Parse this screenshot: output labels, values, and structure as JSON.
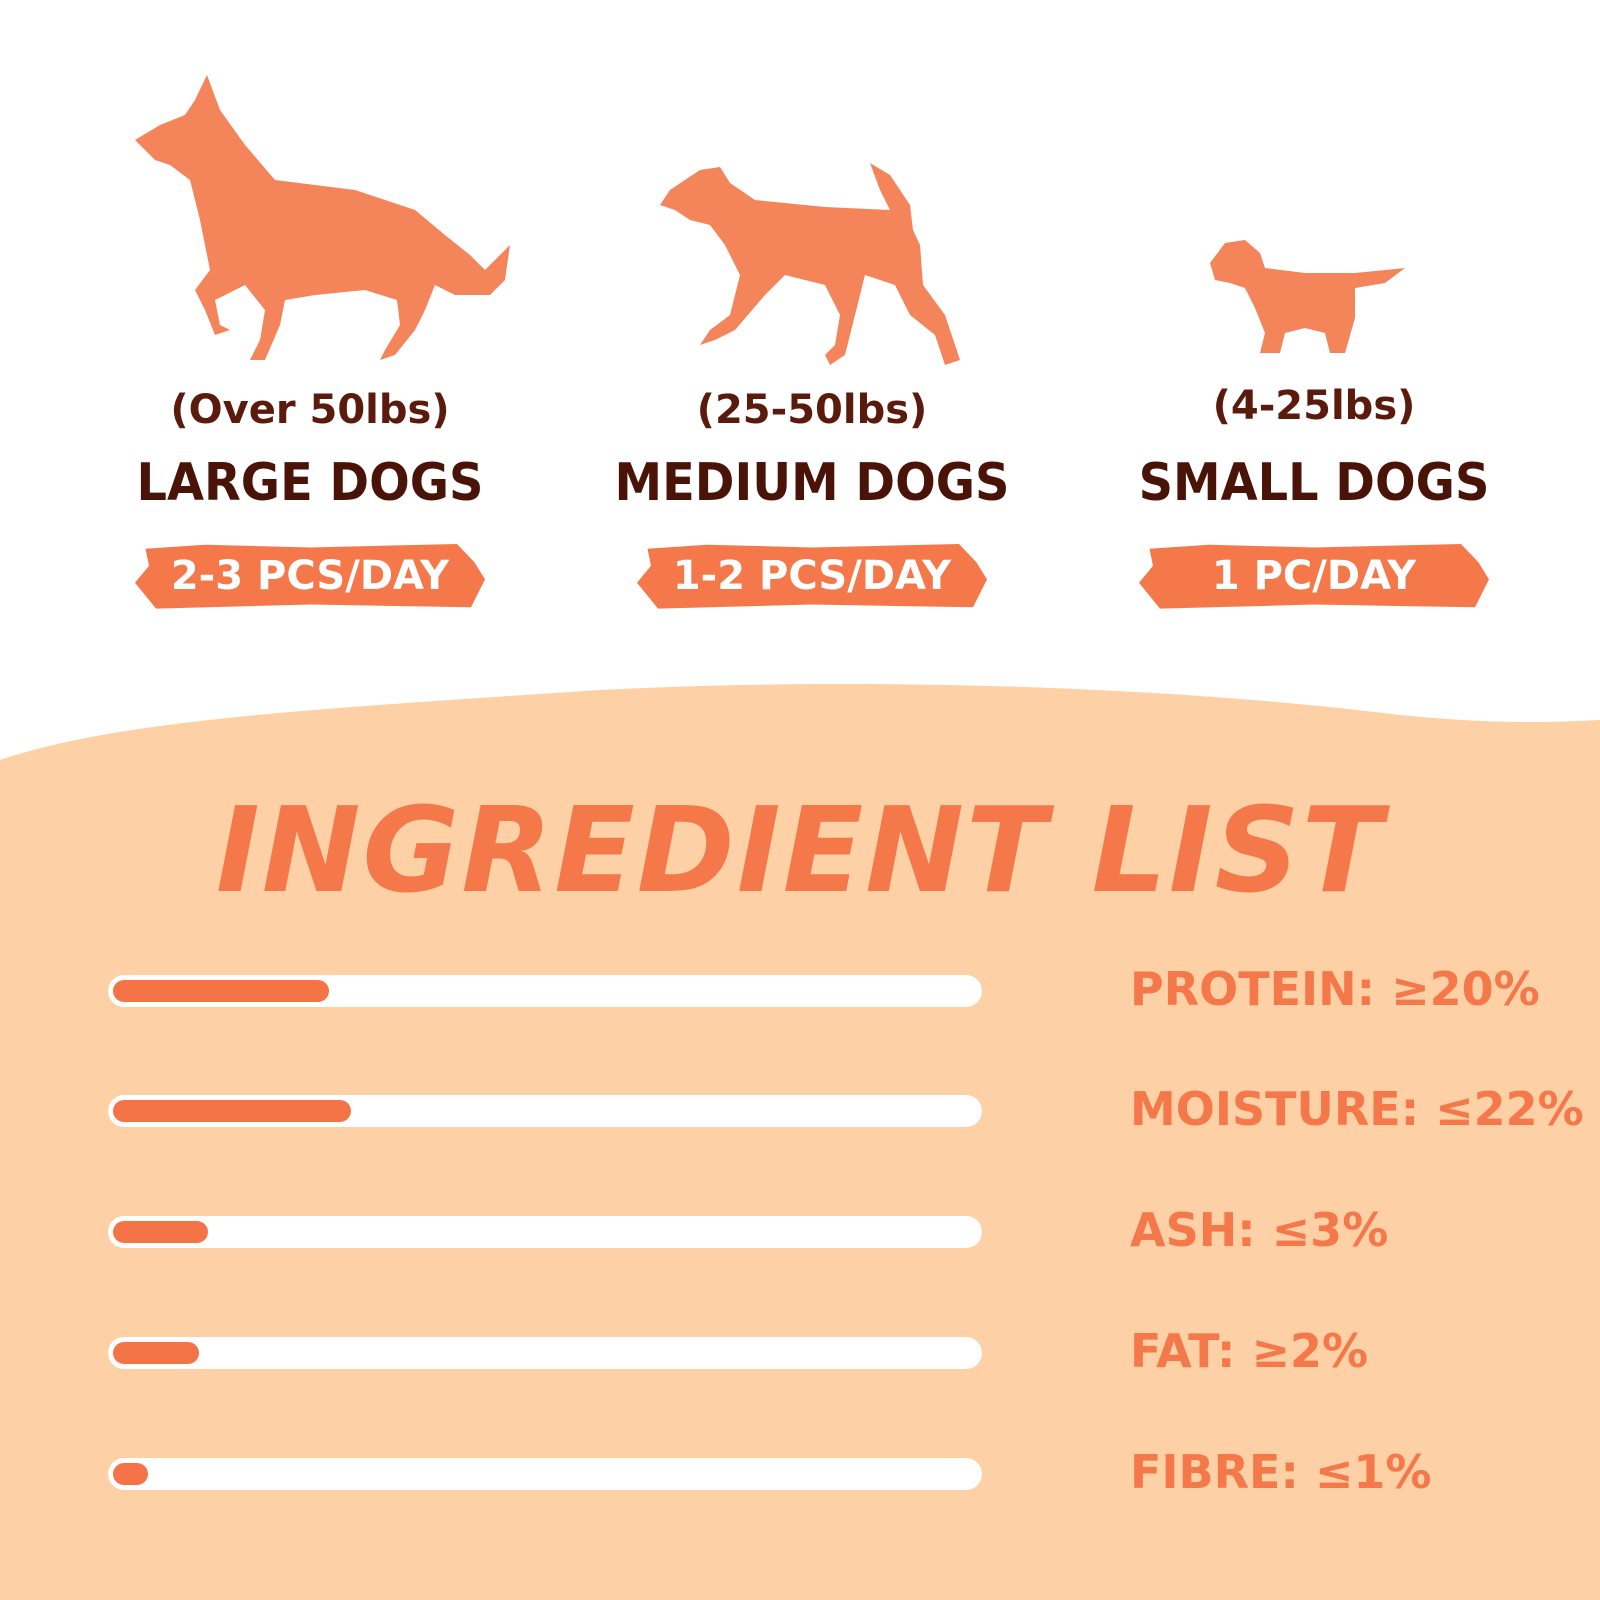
{
  "colors": {
    "accent": "#f4784a",
    "dark_text": "#4a1308",
    "lower_background": "#fdd1a5",
    "track": "#ffffff"
  },
  "dogs": [
    {
      "weight": "(Over 50lbs)",
      "size": "LARGE DOGS",
      "dosage": "2-3 PCS/DAY",
      "icon": "large-dog-icon"
    },
    {
      "weight": "(25-50lbs)",
      "size": "MEDIUM DOGS",
      "dosage": "1-2 PCS/DAY",
      "icon": "medium-dog-icon"
    },
    {
      "weight": "(4-25lbs)",
      "size": "SMALL DOGS",
      "dosage": "1 PC/DAY",
      "icon": "small-dog-icon"
    }
  ],
  "ingredients": {
    "title": "INGREDIENT LIST",
    "items": [
      {
        "label": "PROTEIN: ≥20%",
        "fill_percent": 25
      },
      {
        "label": "MOISTURE: ≤22%",
        "fill_percent": 27.5
      },
      {
        "label": "ASH: ≤3%",
        "fill_percent": 11
      },
      {
        "label": "FAT: ≥2%",
        "fill_percent": 10
      },
      {
        "label": "FIBRE: ≤1%",
        "fill_percent": 4
      }
    ]
  }
}
